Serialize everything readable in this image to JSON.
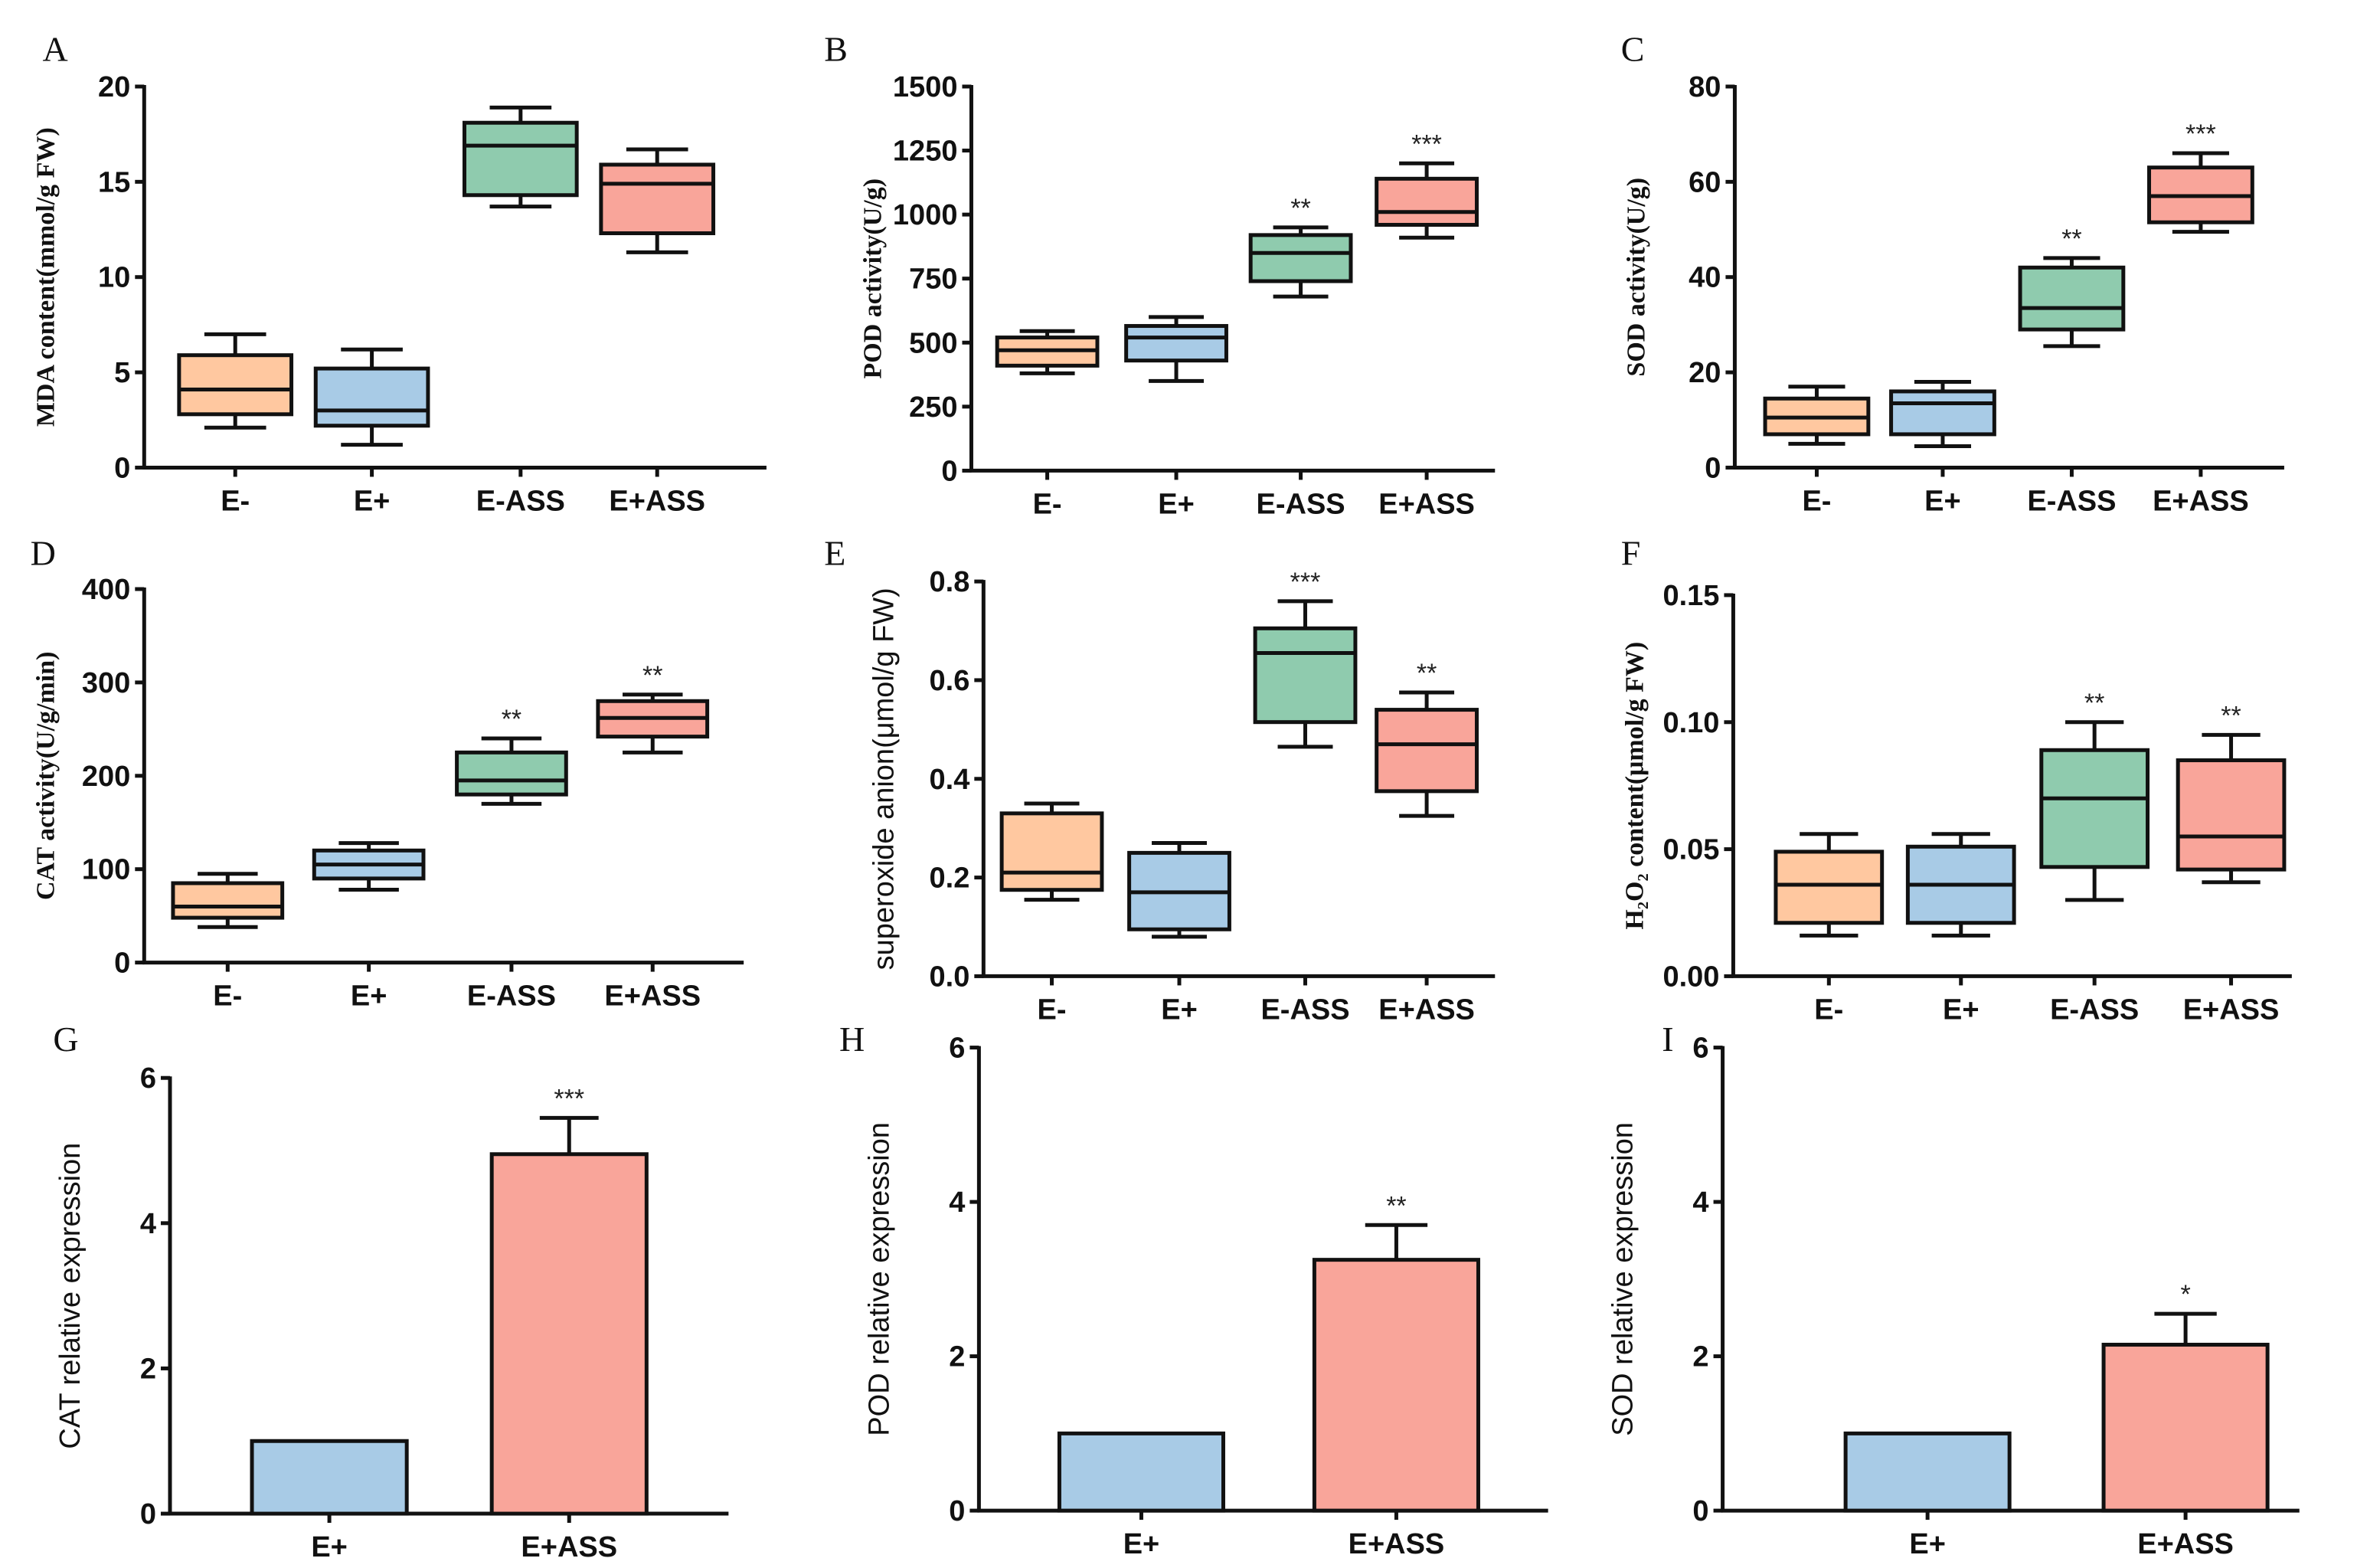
{
  "colors": {
    "E-": "#FFC8A0",
    "E+": "#A8CBE6",
    "E-ASS": "#8FCBAE",
    "E+ASS": "#F9A59A",
    "axis": "#111111"
  },
  "chart_data": [
    {
      "panel": "A",
      "type": "box",
      "ylabel": "MDA content(mmol/g FW)",
      "ylabel_style": "serif",
      "ylim": [
        0,
        20
      ],
      "yticks": [
        "0",
        "5",
        "10",
        "15",
        "20"
      ],
      "ytick_values": [
        0,
        5,
        10,
        15,
        20
      ],
      "categories": [
        "E-",
        "E+",
        "E-ASS",
        "E+ASS"
      ],
      "boxes": [
        [
          2.1,
          2.8,
          4.1,
          5.9,
          7.0
        ],
        [
          1.2,
          2.2,
          3.0,
          5.2,
          6.2
        ],
        [
          13.7,
          14.3,
          16.9,
          18.1,
          18.9
        ],
        [
          11.3,
          12.3,
          14.9,
          15.9,
          16.7
        ]
      ],
      "significance": [
        "",
        "",
        "",
        ""
      ]
    },
    {
      "panel": "B",
      "type": "box",
      "ylabel": "POD activity(U/g)",
      "ylabel_style": "serif",
      "ylim": [
        0,
        1500
      ],
      "yticks": [
        "0",
        "250",
        "500",
        "750",
        "1000",
        "1250",
        "1500"
      ],
      "ytick_values": [
        0,
        250,
        500,
        750,
        1000,
        1250,
        1500
      ],
      "categories": [
        "E-",
        "E+",
        "E-ASS",
        "E+ASS"
      ],
      "boxes": [
        [
          380,
          410,
          470,
          520,
          545
        ],
        [
          350,
          430,
          520,
          565,
          600
        ],
        [
          680,
          740,
          850,
          920,
          950
        ],
        [
          910,
          960,
          1010,
          1140,
          1200
        ]
      ],
      "significance": [
        "",
        "",
        "**",
        "***"
      ]
    },
    {
      "panel": "C",
      "type": "box",
      "ylabel": "SOD activity(U/g)",
      "ylabel_style": "serif",
      "ylim": [
        0,
        80
      ],
      "yticks": [
        "0",
        "20",
        "40",
        "60",
        "80"
      ],
      "ytick_values": [
        0,
        20,
        40,
        60,
        80
      ],
      "categories": [
        "E-",
        "E+",
        "E-ASS",
        "E+ASS"
      ],
      "boxes": [
        [
          5,
          7,
          10.5,
          14.5,
          17
        ],
        [
          4.5,
          7,
          13.5,
          16,
          18
        ],
        [
          25.5,
          29,
          33.5,
          42,
          44
        ],
        [
          49.5,
          51.5,
          57,
          63,
          66
        ]
      ],
      "significance": [
        "",
        "",
        "**",
        "***"
      ]
    },
    {
      "panel": "D",
      "type": "box",
      "ylabel": "CAT activity(U/g/min)",
      "ylabel_style": "serif",
      "ylim": [
        0,
        400
      ],
      "yticks": [
        "0",
        "100",
        "200",
        "300",
        "400"
      ],
      "ytick_values": [
        0,
        100,
        200,
        300,
        400
      ],
      "categories": [
        "E-",
        "E+",
        "E-ASS",
        "E+ASS"
      ],
      "boxes": [
        [
          38,
          48,
          60,
          85,
          95
        ],
        [
          78,
          90,
          105,
          120,
          128
        ],
        [
          170,
          180,
          195,
          225,
          240
        ],
        [
          225,
          242,
          262,
          280,
          287
        ]
      ],
      "significance": [
        "",
        "",
        "**",
        "**"
      ]
    },
    {
      "panel": "E",
      "type": "box",
      "ylabel": "superoxide anion(μmol/g FW)",
      "ylabel_style": "sans",
      "ylim": [
        0,
        0.8
      ],
      "yticks": [
        "0.0",
        "0.2",
        "0.4",
        "0.6",
        "0.8"
      ],
      "ytick_values": [
        0,
        0.2,
        0.4,
        0.6,
        0.8
      ],
      "categories": [
        "E-",
        "E+",
        "E-ASS",
        "E+ASS"
      ],
      "boxes": [
        [
          0.155,
          0.175,
          0.21,
          0.33,
          0.35
        ],
        [
          0.08,
          0.095,
          0.17,
          0.25,
          0.27
        ],
        [
          0.465,
          0.515,
          0.655,
          0.705,
          0.76
        ],
        [
          0.325,
          0.375,
          0.47,
          0.54,
          0.575
        ]
      ],
      "significance": [
        "",
        "",
        "***",
        "**"
      ]
    },
    {
      "panel": "F",
      "type": "box",
      "ylabel": "H₂O₂ content(μmol/g FW)",
      "ylabel_style": "serif",
      "ylim": [
        0,
        0.15
      ],
      "yticks": [
        "0.00",
        "0.05",
        "0.10",
        "0.15"
      ],
      "ytick_values": [
        0,
        0.05,
        0.1,
        0.15
      ],
      "categories": [
        "E-",
        "E+",
        "E-ASS",
        "E+ASS"
      ],
      "boxes": [
        [
          0.016,
          0.021,
          0.036,
          0.049,
          0.056
        ],
        [
          0.016,
          0.021,
          0.036,
          0.051,
          0.056
        ],
        [
          0.03,
          0.043,
          0.07,
          0.089,
          0.1
        ],
        [
          0.037,
          0.042,
          0.055,
          0.085,
          0.095
        ]
      ],
      "significance": [
        "",
        "",
        "**",
        "**"
      ]
    },
    {
      "panel": "G",
      "type": "bar",
      "ylabel": "CAT relative expression",
      "ylabel_style": "sans",
      "ylim": [
        0,
        6
      ],
      "yticks": [
        "0",
        "2",
        "4",
        "6"
      ],
      "ytick_values": [
        0,
        2,
        4,
        6
      ],
      "categories": [
        "E+",
        "E+ASS"
      ],
      "values": [
        1.0,
        4.95
      ],
      "errors": [
        0,
        0.5
      ],
      "significance": [
        "",
        "***"
      ]
    },
    {
      "panel": "H",
      "type": "bar",
      "ylabel": "POD relative expression",
      "ylabel_style": "sans",
      "ylim": [
        0,
        6
      ],
      "yticks": [
        "0",
        "2",
        "4",
        "6"
      ],
      "ytick_values": [
        0,
        2,
        4,
        6
      ],
      "categories": [
        "E+",
        "E+ASS"
      ],
      "values": [
        1.0,
        3.25
      ],
      "errors": [
        0,
        0.45
      ],
      "significance": [
        "",
        "**"
      ]
    },
    {
      "panel": "I",
      "type": "bar",
      "ylabel": "SOD relative expression",
      "ylabel_style": "sans",
      "ylim": [
        0,
        6
      ],
      "yticks": [
        "0",
        "2",
        "4",
        "6"
      ],
      "ytick_values": [
        0,
        2,
        4,
        6
      ],
      "categories": [
        "E+",
        "E+ASS"
      ],
      "values": [
        1.0,
        2.15
      ],
      "errors": [
        0,
        0.4
      ],
      "significance": [
        "",
        "*"
      ]
    }
  ]
}
